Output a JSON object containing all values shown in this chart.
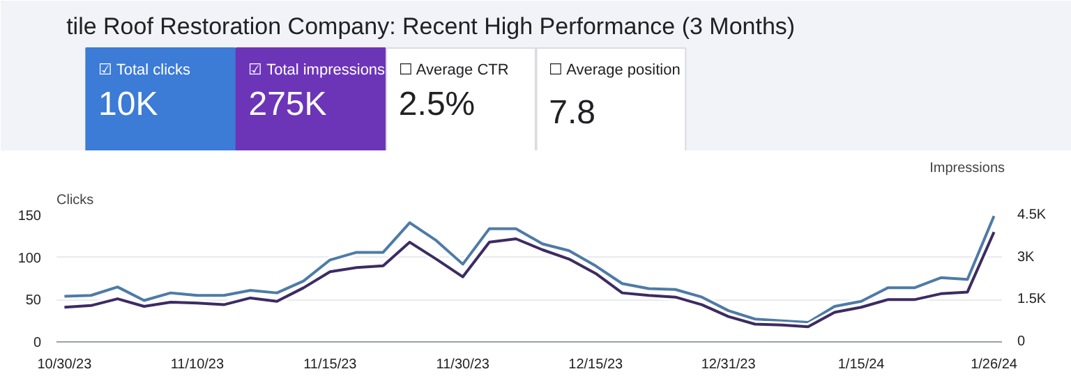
{
  "chart_data": {
    "type": "line",
    "title": "tile Roof Restoration Company: Recent High Performance (3 Months)",
    "annotations": [
      "☑ Total clicks",
      "10K",
      "☑ Total impressions",
      "275K",
      "☐ Average CTR",
      "2.5%",
      "☐ Average position",
      "7.8"
    ],
    "ylabel": "Clicks",
    "y2label": "Impressions",
    "categories": [
      "10/30/23",
      null,
      null,
      null,
      null,
      "11/10/23",
      null,
      null,
      null,
      null,
      "11/15/23",
      null,
      null,
      null,
      null,
      "11/30/23",
      null,
      null,
      null,
      null,
      "12/15/23",
      null,
      null,
      null,
      null,
      "12/31/23",
      null,
      null,
      null,
      null,
      "1/15/24",
      null,
      null,
      null,
      null,
      "1/26/24"
    ],
    "series": [
      {
        "color": "#4e7ba6",
        "values": [
          54,
          55,
          65,
          49,
          58,
          55,
          55,
          61,
          58,
          72,
          97,
          106,
          106,
          141,
          120,
          92,
          134,
          134,
          116,
          108,
          90,
          69,
          63,
          62,
          53,
          37,
          27,
          25,
          23,
          42,
          48,
          64,
          64,
          76,
          74,
          149
        ]
      },
      {
        "color": "#3d2b63",
        "axis": "y2",
        "values": [
          1230,
          1290,
          1530,
          1260,
          1410,
          1380,
          1320,
          1560,
          1440,
          1920,
          2490,
          2640,
          2700,
          3540,
          2940,
          2310,
          3540,
          3660,
          3270,
          2940,
          2430,
          1740,
          1650,
          1590,
          1320,
          900,
          630,
          600,
          540,
          1050,
          1230,
          1500,
          1500,
          1710,
          1770,
          3900
        ]
      }
    ],
    "ylim": [
      0,
      150
    ],
    "yticks": [
      0,
      50,
      100,
      150
    ],
    "y2lim": [
      0,
      4500
    ],
    "y2ticks": [
      0,
      {
        "value": 1500,
        "label": "1.5K"
      },
      {
        "value": 3000,
        "label": "3K"
      },
      {
        "value": 4500,
        "label": "4.5K"
      }
    ],
    "grid": "y",
    "line_style": "solid",
    "marker": "none"
  }
}
